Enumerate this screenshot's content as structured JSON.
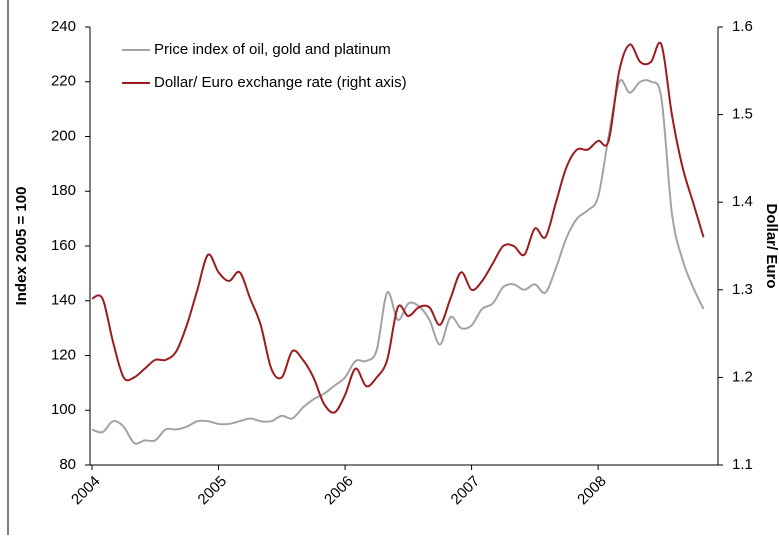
{
  "chart_data": {
    "type": "line",
    "x": [
      2004,
      2004.083,
      2004.167,
      2004.25,
      2004.333,
      2004.417,
      2004.5,
      2004.583,
      2004.667,
      2004.75,
      2004.833,
      2004.917,
      2005,
      2005.083,
      2005.167,
      2005.25,
      2005.333,
      2005.417,
      2005.5,
      2005.583,
      2005.667,
      2005.75,
      2005.833,
      2005.917,
      2006,
      2006.083,
      2006.167,
      2006.25,
      2006.333,
      2006.417,
      2006.5,
      2006.583,
      2006.667,
      2006.75,
      2006.833,
      2006.917,
      2007,
      2007.083,
      2007.167,
      2007.25,
      2007.333,
      2007.417,
      2007.5,
      2007.583,
      2007.667,
      2007.75,
      2007.833,
      2007.917,
      2008,
      2008.083,
      2008.167,
      2008.25,
      2008.333,
      2008.417,
      2008.5,
      2008.583,
      2008.667,
      2008.75,
      2008.833
    ],
    "series": [
      {
        "name": "Price index of oil, gold and platinum",
        "color": "#a3a3a3",
        "axis": "y",
        "values": [
          93,
          92,
          96,
          94,
          88,
          89,
          89,
          93,
          93,
          94,
          96,
          96,
          95,
          95,
          96,
          97,
          96,
          96,
          98,
          97,
          101,
          104,
          106,
          109,
          112,
          118,
          118,
          122,
          143,
          133,
          139,
          138,
          133,
          124,
          134,
          130,
          131,
          137,
          139,
          145,
          146,
          144,
          146,
          143,
          152,
          163,
          170,
          173,
          178,
          200,
          220,
          216,
          220,
          220,
          214,
          172,
          155,
          145,
          137
        ]
      },
      {
        "name": "Dollar/ Euro exchange rate (right axis)",
        "color": "#9b1b1e",
        "axis": "y2",
        "values": [
          1.29,
          1.29,
          1.24,
          1.2,
          1.2,
          1.21,
          1.22,
          1.22,
          1.23,
          1.26,
          1.3,
          1.34,
          1.32,
          1.31,
          1.32,
          1.29,
          1.26,
          1.21,
          1.2,
          1.23,
          1.22,
          1.2,
          1.17,
          1.16,
          1.18,
          1.21,
          1.19,
          1.2,
          1.22,
          1.28,
          1.27,
          1.28,
          1.28,
          1.26,
          1.29,
          1.32,
          1.3,
          1.31,
          1.33,
          1.35,
          1.35,
          1.34,
          1.37,
          1.36,
          1.4,
          1.44,
          1.46,
          1.46,
          1.47,
          1.47,
          1.55,
          1.58,
          1.56,
          1.56,
          1.58,
          1.5,
          1.44,
          1.4,
          1.36
        ]
      }
    ],
    "ylabel": "Index 2005 = 100",
    "y2label": "Dollar/ Euro",
    "xlim": [
      2004,
      2008.9
    ],
    "xticks": [
      2004,
      2005,
      2006,
      2007,
      2008
    ],
    "ylim": [
      80,
      240
    ],
    "yticks": [
      80,
      100,
      120,
      140,
      160,
      180,
      200,
      220,
      240
    ],
    "y2lim": [
      1.1,
      1.6
    ],
    "y2ticks": [
      1.1,
      1.2,
      1.3,
      1.4,
      1.5,
      1.6
    ],
    "legend": "top-left"
  }
}
